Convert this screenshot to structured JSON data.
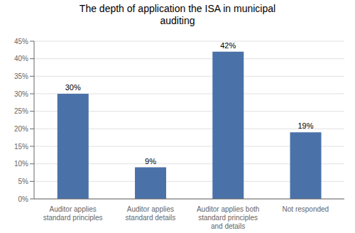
{
  "chart_data": {
    "type": "bar",
    "title": "The depth of application the ISA in municipal\nauditing",
    "categories": [
      "Auditor applies\nstandard principles",
      "Auditor applies\nstandard details",
      "Auditor applies both\nstandard principles\nand details",
      "Not responded"
    ],
    "values": [
      30,
      9,
      42,
      19
    ],
    "value_labels": [
      "30%",
      "9%",
      "42%",
      "19%"
    ],
    "color": "#4a72a8",
    "ylim": [
      0,
      45
    ],
    "yticks": [
      {
        "value": 0,
        "label": "0%"
      },
      {
        "value": 5,
        "label": "5%"
      },
      {
        "value": 10,
        "label": "10%"
      },
      {
        "value": 15,
        "label": "15%"
      },
      {
        "value": 20,
        "label": "20%"
      },
      {
        "value": 25,
        "label": "25%"
      },
      {
        "value": 30,
        "label": "30%"
      },
      {
        "value": 35,
        "label": "35%"
      },
      {
        "value": 40,
        "label": "40%"
      },
      {
        "value": 45,
        "label": "45%"
      }
    ],
    "grid": true,
    "data_labels": true
  }
}
